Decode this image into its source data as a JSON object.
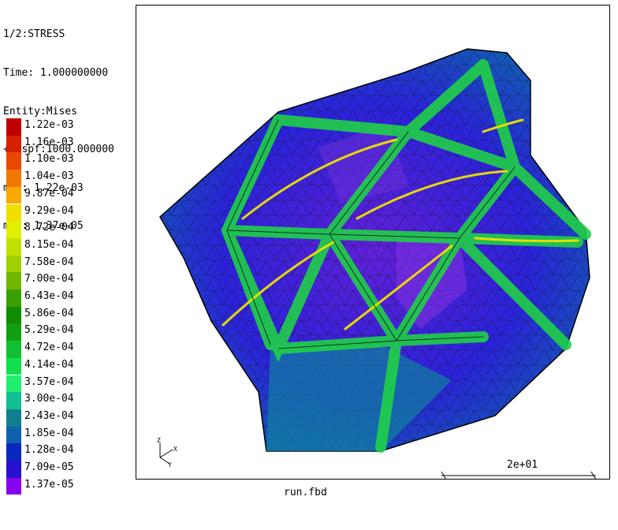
{
  "info": {
    "step": "1/2:STRESS",
    "time": "Time: 1.000000000",
    "entity": "Entity:Mises",
    "dispf": "+Dispf:1000.000000",
    "max": "max: 1.22e-03",
    "min": "min: 1.37e-05"
  },
  "legend": [
    {
      "label": "1.22e-03",
      "color": "#c00000"
    },
    {
      "label": "1.16e-03",
      "color": "#d82000"
    },
    {
      "label": "1.10e-03",
      "color": "#e84800"
    },
    {
      "label": "1.04e-03",
      "color": "#f07800"
    },
    {
      "label": "9.87e-04",
      "color": "#f8a800"
    },
    {
      "label": "9.29e-04",
      "color": "#f0e000"
    },
    {
      "label": "8.72e-04",
      "color": "#e0f000"
    },
    {
      "label": "8.15e-04",
      "color": "#c0e000"
    },
    {
      "label": "7.58e-04",
      "color": "#a0d000"
    },
    {
      "label": "7.00e-04",
      "color": "#70b800"
    },
    {
      "label": "6.43e-04",
      "color": "#38a000"
    },
    {
      "label": "5.86e-04",
      "color": "#108c00"
    },
    {
      "label": "5.29e-04",
      "color": "#10a010"
    },
    {
      "label": "4.72e-04",
      "color": "#10c030"
    },
    {
      "label": "4.14e-04",
      "color": "#10e050"
    },
    {
      "label": "3.57e-04",
      "color": "#20f070"
    },
    {
      "label": "3.00e-04",
      "color": "#10c090"
    },
    {
      "label": "2.43e-04",
      "color": "#108090"
    },
    {
      "label": "1.85e-04",
      "color": "#1060b0"
    },
    {
      "label": "1.28e-04",
      "color": "#0828c0"
    },
    {
      "label": "7.09e-05",
      "color": "#2810d0"
    },
    {
      "label": "1.37e-05",
      "color": "#8800f0"
    }
  ],
  "scale": {
    "label": "2e+01"
  },
  "filename": "run.fbd",
  "colors": {
    "background": "#ffffff",
    "mesh_blue": "#2a22d8",
    "mesh_green": "#20d048"
  }
}
